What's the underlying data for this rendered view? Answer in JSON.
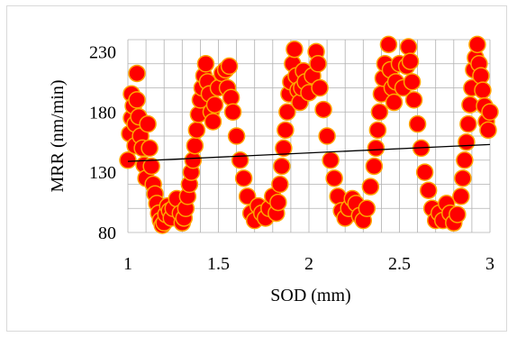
{
  "chart_data": {
    "type": "scatter",
    "title": "",
    "xlabel": "SOD (mm)",
    "ylabel": "MRR (nm/min)",
    "xlim": [
      1,
      3
    ],
    "ylim": [
      80,
      240
    ],
    "xticks": [
      1,
      1.5,
      2,
      2.5,
      3
    ],
    "xtick_labels": [
      "1",
      "1.5",
      "2",
      "2.5",
      "3"
    ],
    "yticks": [
      80,
      130,
      180,
      230
    ],
    "ytick_labels": [
      "80",
      "130",
      "180",
      "230"
    ],
    "grid": true,
    "legend": "none",
    "colors": {
      "marker_fill": "#ff0000",
      "marker_edge": "#ffa500",
      "trendline": "#000000",
      "grid": "#b0b0b0"
    },
    "series": [
      {
        "marker": "circle",
        "points": [
          [
            1.0,
            140
          ],
          [
            1.01,
            162
          ],
          [
            1.02,
            175
          ],
          [
            1.02,
            195
          ],
          [
            1.03,
            185
          ],
          [
            1.04,
            170
          ],
          [
            1.04,
            152
          ],
          [
            1.05,
            212
          ],
          [
            1.05,
            190
          ],
          [
            1.06,
            176
          ],
          [
            1.07,
            160
          ],
          [
            1.08,
            150
          ],
          [
            1.09,
            136
          ],
          [
            1.1,
            125
          ],
          [
            1.11,
            170
          ],
          [
            1.12,
            150
          ],
          [
            1.13,
            135
          ],
          [
            1.14,
            120
          ],
          [
            1.15,
            112
          ],
          [
            1.16,
            104
          ],
          [
            1.17,
            96
          ],
          [
            1.18,
            90
          ],
          [
            1.19,
            86
          ],
          [
            1.2,
            88
          ],
          [
            1.21,
            95
          ],
          [
            1.22,
            102
          ],
          [
            1.23,
            98
          ],
          [
            1.24,
            92
          ],
          [
            1.25,
            100
          ],
          [
            1.27,
            108
          ],
          [
            1.29,
            96
          ],
          [
            1.3,
            88
          ],
          [
            1.31,
            92
          ],
          [
            1.32,
            100
          ],
          [
            1.33,
            110
          ],
          [
            1.34,
            120
          ],
          [
            1.35,
            130
          ],
          [
            1.36,
            140
          ],
          [
            1.37,
            152
          ],
          [
            1.38,
            165
          ],
          [
            1.39,
            178
          ],
          [
            1.4,
            190
          ],
          [
            1.41,
            200
          ],
          [
            1.42,
            210
          ],
          [
            1.43,
            220
          ],
          [
            1.44,
            205
          ],
          [
            1.45,
            195
          ],
          [
            1.46,
            180
          ],
          [
            1.47,
            172
          ],
          [
            1.48,
            186
          ],
          [
            1.5,
            200
          ],
          [
            1.52,
            212
          ],
          [
            1.54,
            215
          ],
          [
            1.55,
            200
          ],
          [
            1.56,
            218
          ],
          [
            1.57,
            192
          ],
          [
            1.58,
            180
          ],
          [
            1.6,
            160
          ],
          [
            1.62,
            140
          ],
          [
            1.64,
            125
          ],
          [
            1.66,
            110
          ],
          [
            1.68,
            96
          ],
          [
            1.7,
            90
          ],
          [
            1.72,
            102
          ],
          [
            1.74,
            96
          ],
          [
            1.76,
            92
          ],
          [
            1.78,
            100
          ],
          [
            1.8,
            110
          ],
          [
            1.82,
            96
          ],
          [
            1.83,
            105
          ],
          [
            1.84,
            120
          ],
          [
            1.85,
            135
          ],
          [
            1.86,
            150
          ],
          [
            1.87,
            165
          ],
          [
            1.88,
            180
          ],
          [
            1.89,
            195
          ],
          [
            1.9,
            205
          ],
          [
            1.91,
            220
          ],
          [
            1.92,
            232
          ],
          [
            1.93,
            210
          ],
          [
            1.94,
            198
          ],
          [
            1.95,
            188
          ],
          [
            1.96,
            200
          ],
          [
            1.97,
            214
          ],
          [
            1.98,
            205
          ],
          [
            2.0,
            196
          ],
          [
            2.02,
            210
          ],
          [
            2.04,
            230
          ],
          [
            2.05,
            220
          ],
          [
            2.06,
            200
          ],
          [
            2.08,
            182
          ],
          [
            2.1,
            160
          ],
          [
            2.12,
            140
          ],
          [
            2.14,
            125
          ],
          [
            2.16,
            110
          ],
          [
            2.18,
            98
          ],
          [
            2.2,
            92
          ],
          [
            2.22,
            100
          ],
          [
            2.24,
            108
          ],
          [
            2.26,
            104
          ],
          [
            2.28,
            94
          ],
          [
            2.3,
            90
          ],
          [
            2.32,
            100
          ],
          [
            2.34,
            118
          ],
          [
            2.36,
            135
          ],
          [
            2.37,
            150
          ],
          [
            2.38,
            165
          ],
          [
            2.39,
            180
          ],
          [
            2.4,
            195
          ],
          [
            2.41,
            208
          ],
          [
            2.42,
            220
          ],
          [
            2.44,
            236
          ],
          [
            2.45,
            215
          ],
          [
            2.46,
            200
          ],
          [
            2.47,
            188
          ],
          [
            2.48,
            205
          ],
          [
            2.5,
            220
          ],
          [
            2.52,
            200
          ],
          [
            2.54,
            218
          ],
          [
            2.55,
            234
          ],
          [
            2.56,
            222
          ],
          [
            2.57,
            205
          ],
          [
            2.58,
            190
          ],
          [
            2.6,
            170
          ],
          [
            2.62,
            150
          ],
          [
            2.64,
            130
          ],
          [
            2.66,
            115
          ],
          [
            2.68,
            100
          ],
          [
            2.7,
            90
          ],
          [
            2.72,
            96
          ],
          [
            2.74,
            90
          ],
          [
            2.76,
            104
          ],
          [
            2.78,
            96
          ],
          [
            2.8,
            88
          ],
          [
            2.82,
            95
          ],
          [
            2.84,
            110
          ],
          [
            2.85,
            125
          ],
          [
            2.86,
            140
          ],
          [
            2.87,
            155
          ],
          [
            2.88,
            170
          ],
          [
            2.89,
            186
          ],
          [
            2.9,
            200
          ],
          [
            2.91,
            215
          ],
          [
            2.92,
            225
          ],
          [
            2.93,
            236
          ],
          [
            2.94,
            220
          ],
          [
            2.95,
            210
          ],
          [
            2.96,
            198
          ],
          [
            2.97,
            185
          ],
          [
            2.98,
            172
          ],
          [
            2.99,
            165
          ],
          [
            3.0,
            180
          ]
        ]
      }
    ],
    "trendline": {
      "x": [
        1,
        3
      ],
      "y": [
        139,
        153
      ]
    }
  }
}
